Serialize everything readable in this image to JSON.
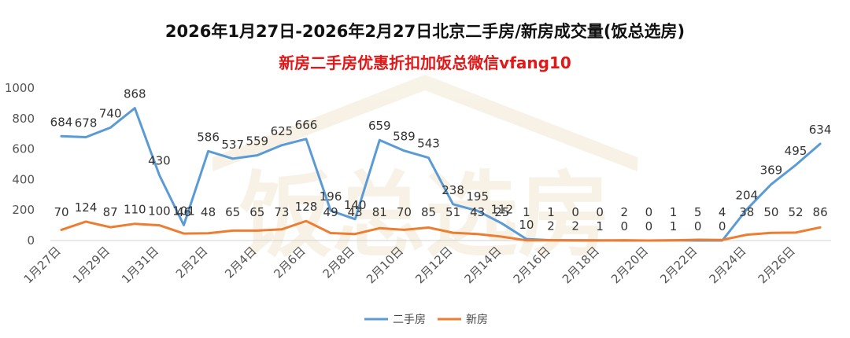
{
  "chart_data": {
    "type": "line",
    "title": "2026年1月27日-2026年2月27日北京二手房/新房成交量(饭总选房)",
    "subtitle": "新房二手房优惠折扣加饭总微信vfang10",
    "watermark": "饭总选房",
    "ylim": [
      0,
      1000
    ],
    "yticks": [
      0,
      200,
      400,
      600,
      800,
      1000
    ],
    "grid": false,
    "legend_position": "bottom",
    "x": [
      "1月27日",
      "1月28日",
      "1月29日",
      "1月30日",
      "1月31日",
      "2月1日",
      "2月2日",
      "2月3日",
      "2月4日",
      "2月5日",
      "2月6日",
      "2月7日",
      "2月8日",
      "2月9日",
      "2月10日",
      "2月11日",
      "2月12日",
      "2月13日",
      "2月14日",
      "2月15日",
      "2月16日",
      "2月17日",
      "2月18日",
      "2月19日",
      "2月20日",
      "2月21日",
      "2月22日",
      "2月23日",
      "2月24日",
      "2月25日",
      "2月26日",
      "2月27日"
    ],
    "x_tick_labels": [
      "1月27日",
      "1月29日",
      "1月31日",
      "2月2日",
      "2月4日",
      "2月6日",
      "2月8日",
      "2月10日",
      "2月12日",
      "2月14日",
      "2月16日",
      "2月18日",
      "2月20日",
      "2月22日",
      "2月24日",
      "2月26日"
    ],
    "series": [
      {
        "name": "二手房",
        "color": "#5b9bd5",
        "values": [
          684,
          678,
          740,
          868,
          430,
          101,
          586,
          537,
          559,
          625,
          666,
          196,
          140,
          659,
          589,
          543,
          238,
          195,
          112,
          10,
          2,
          2,
          1,
          0,
          0,
          1,
          0,
          0,
          204,
          369,
          495,
          634
        ]
      },
      {
        "name": "新房",
        "color": "#ed7d31",
        "values": [
          70,
          124,
          87,
          110,
          100,
          46,
          48,
          65,
          65,
          73,
          128,
          49,
          43,
          81,
          70,
          85,
          51,
          43,
          25,
          1,
          1,
          0,
          0,
          2,
          0,
          1,
          5,
          4,
          38,
          50,
          52,
          86
        ]
      }
    ]
  }
}
